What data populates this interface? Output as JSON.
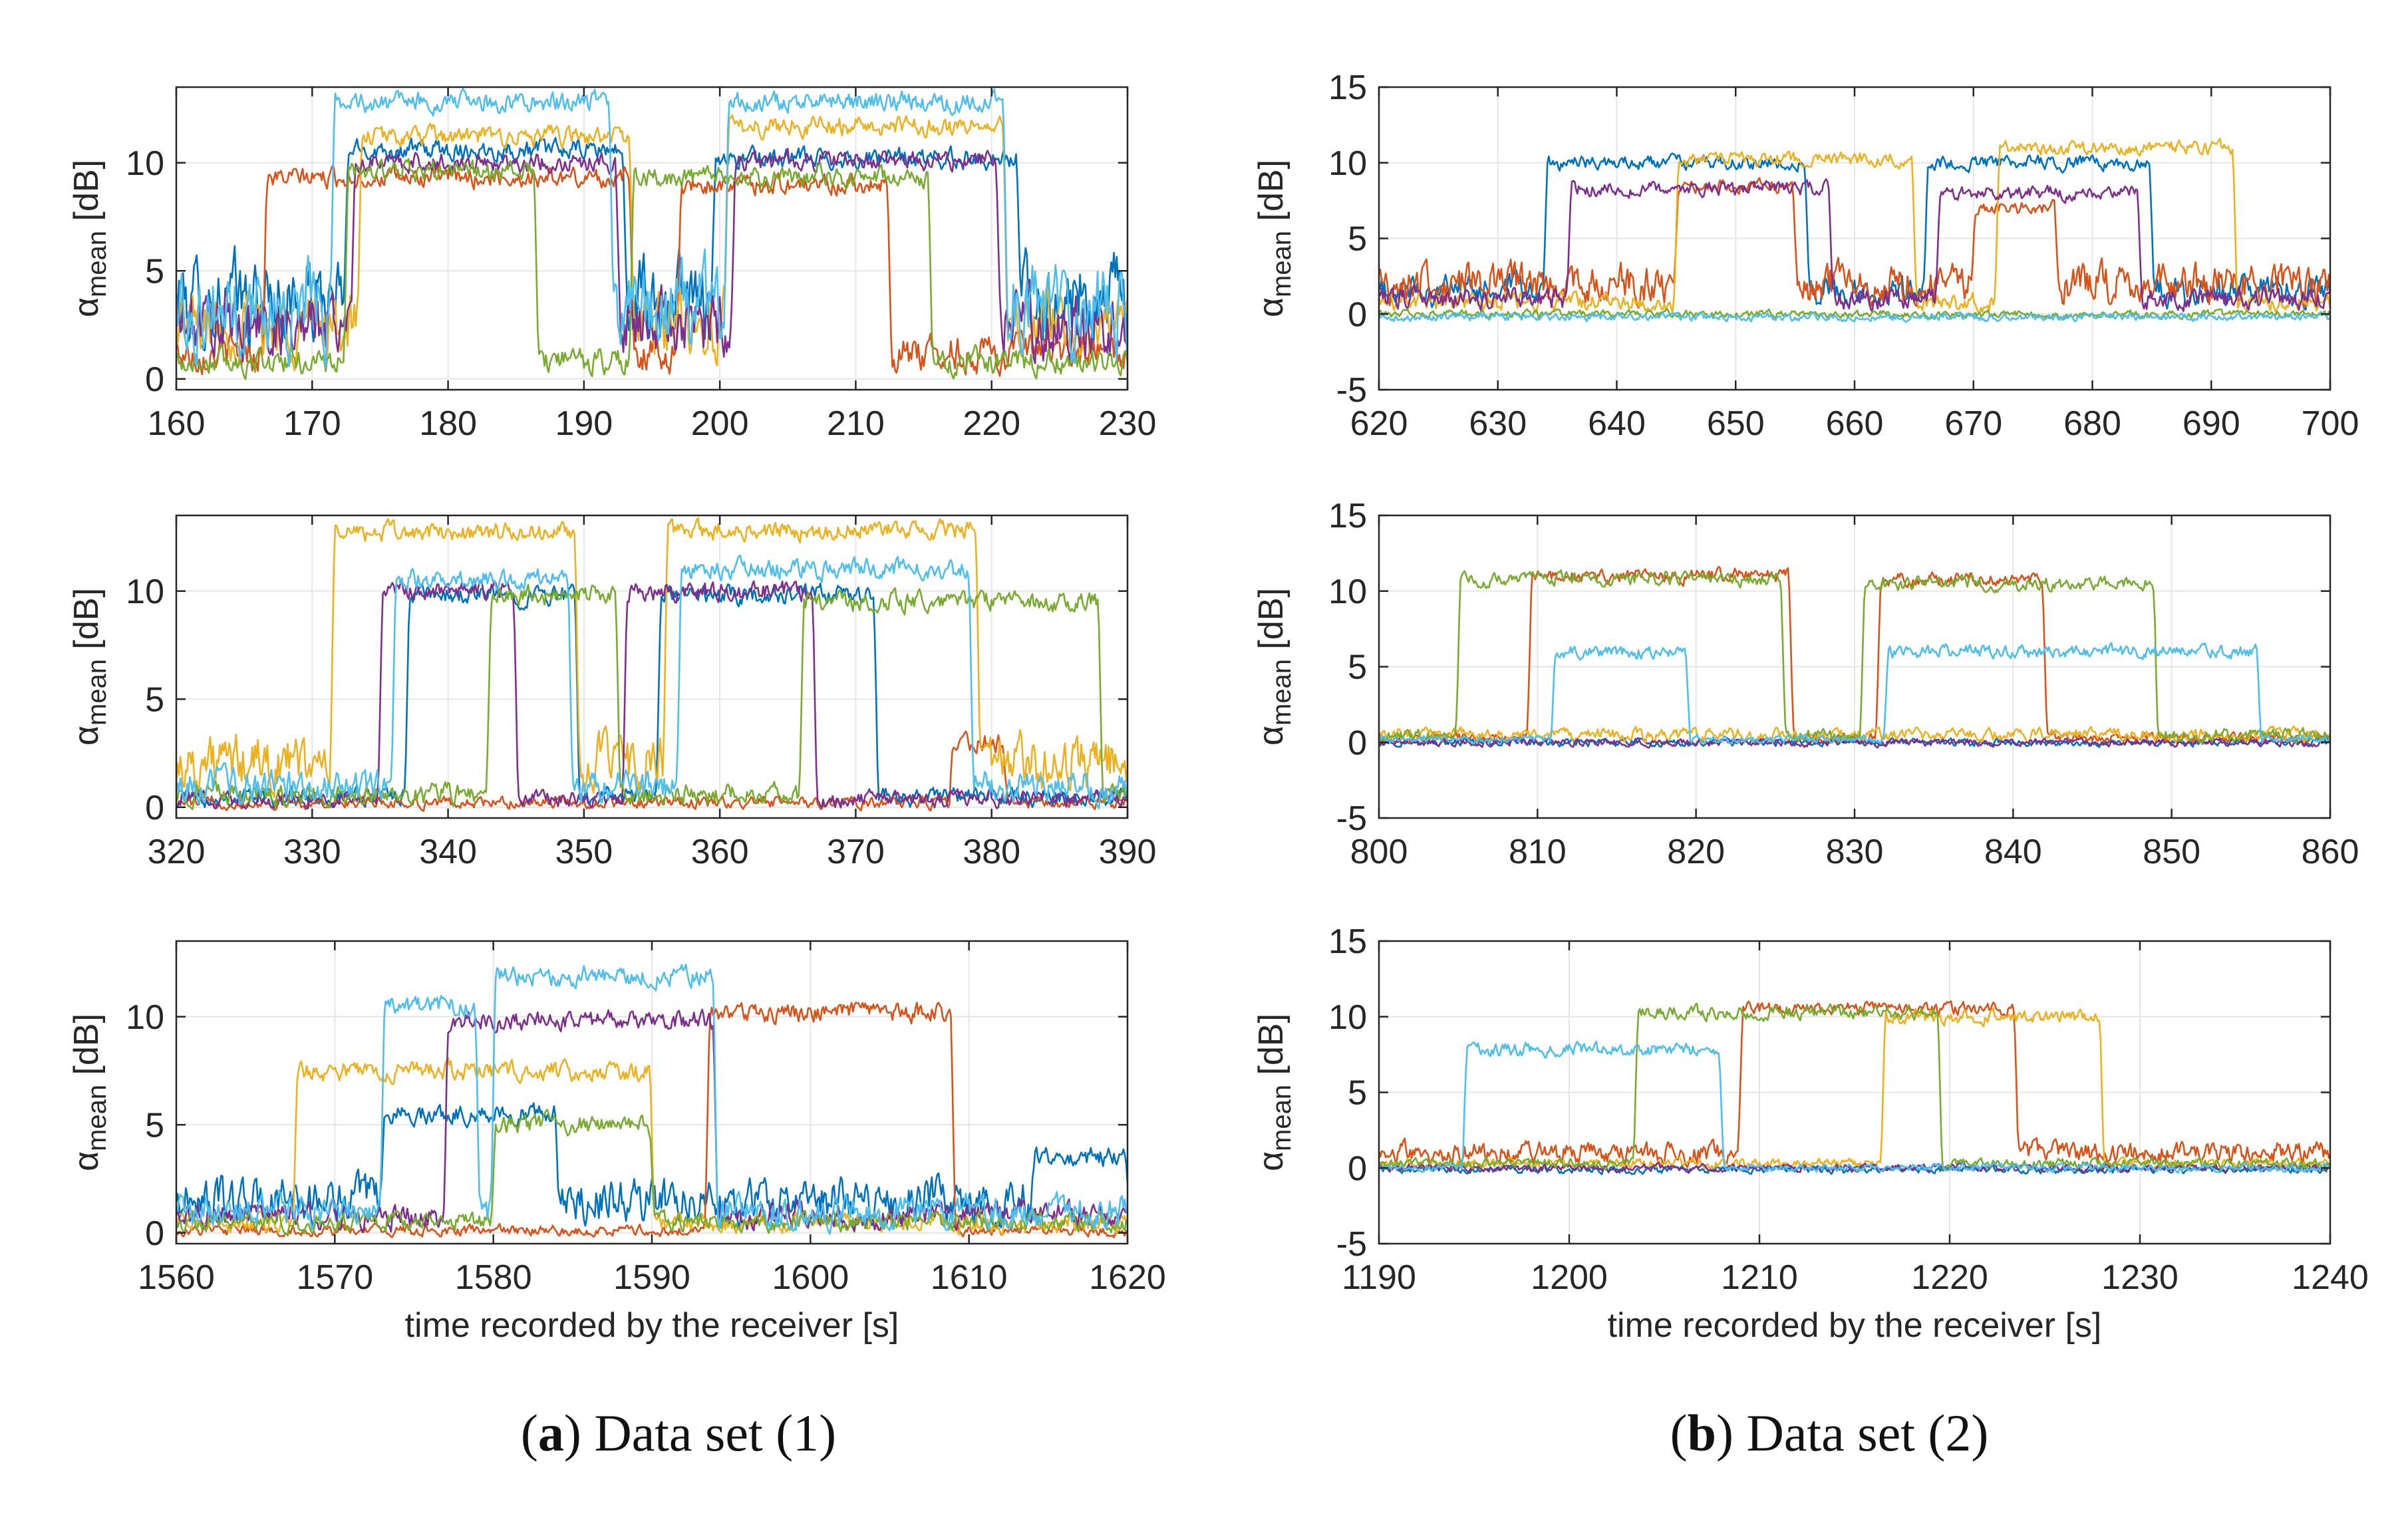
{
  "figure": {
    "caption_a_letter": "a",
    "caption_a_text": "Data set (1)",
    "caption_b_letter": "b",
    "caption_b_text": "Data set (2)",
    "colors": [
      "#0072BD",
      "#D95319",
      "#EDB120",
      "#7E2F8E",
      "#77AC30",
      "#4DBEEE"
    ]
  },
  "chart_data": [
    {
      "id": "a1",
      "type": "line",
      "column": "a",
      "xlim": [
        160,
        230
      ],
      "ylim": [
        -0.5,
        13.5
      ],
      "xticks": [
        160,
        170,
        180,
        190,
        200,
        210,
        220,
        230
      ],
      "yticks": [
        0,
        5,
        10
      ],
      "xlabel": "",
      "ylabel": "α_mean [dB]",
      "ylabel_main": "α",
      "ylabel_sub": "mean",
      "ylabel_unit": "[dB]",
      "grid": true,
      "series": [
        {
          "name": "blue",
          "baseline": 3.5,
          "segments": [
            [
              172.5,
              193,
              10.6
            ],
            [
              199.5,
              222,
              10.2
            ]
          ]
        },
        {
          "name": "orange",
          "baseline": 1.2,
          "segments": [
            [
              166.5,
              193.5,
              9.3
            ],
            [
              197,
              212.5,
              9.0
            ]
          ]
        },
        {
          "name": "yellow",
          "baseline": 2.5,
          "segments": [
            [
              173.5,
              193.5,
              11.2
            ],
            [
              200.5,
              221,
              11.7
            ]
          ]
        },
        {
          "name": "purple",
          "baseline": 2.5,
          "segments": [
            [
              173,
              192.5,
              10.0
            ],
            [
              201,
              220.5,
              10.1
            ]
          ]
        },
        {
          "name": "green",
          "baseline": 0.8,
          "segments": [
            [
              172.5,
              186.5,
              9.6
            ],
            [
              193.5,
              215.5,
              9.3
            ]
          ]
        },
        {
          "name": "cyan",
          "baseline": 3.3,
          "segments": [
            [
              171.5,
              192,
              12.8
            ],
            [
              200.5,
              221,
              12.8
            ]
          ]
        }
      ]
    },
    {
      "id": "a2",
      "type": "line",
      "column": "a",
      "xlim": [
        320,
        390
      ],
      "ylim": [
        -0.5,
        13.5
      ],
      "xticks": [
        320,
        330,
        340,
        350,
        360,
        370,
        380,
        390
      ],
      "yticks": [
        0,
        5,
        10
      ],
      "xlabel": "",
      "ylabel": "α_mean [dB]",
      "ylabel_main": "α",
      "ylabel_sub": "mean",
      "ylabel_unit": "[dB]",
      "grid": true,
      "series": [
        {
          "name": "blue",
          "baseline": 0.5,
          "segments": [
            [
              337,
              349.5,
              9.8
            ],
            [
              355.5,
              371.5,
              9.8
            ]
          ]
        },
        {
          "name": "orange",
          "baseline": 0.2,
          "segments": [
            [
              377,
              381,
              3.0
            ]
          ]
        },
        {
          "name": "yellow",
          "baseline": 2.0,
          "segments": [
            [
              331.5,
              349.5,
              12.7
            ],
            [
              356,
              379,
              12.8
            ]
          ]
        },
        {
          "name": "purple",
          "baseline": 0.4,
          "segments": [
            [
              335,
              345,
              10.0
            ],
            [
              353,
              367,
              10.0
            ]
          ]
        },
        {
          "name": "green",
          "baseline": 0.6,
          "segments": [
            [
              343,
              352.5,
              9.8
            ],
            [
              366,
              388,
              9.5
            ]
          ]
        },
        {
          "name": "cyan",
          "baseline": 1.0,
          "segments": [
            [
              336,
              349,
              10.6
            ],
            [
              357,
              378.5,
              11.0
            ]
          ]
        }
      ]
    },
    {
      "id": "a3",
      "type": "line",
      "column": "a",
      "xlim": [
        1560,
        1620
      ],
      "ylim": [
        -0.5,
        13.5
      ],
      "xticks": [
        1560,
        1570,
        1580,
        1590,
        1600,
        1610,
        1620
      ],
      "yticks": [
        0,
        5,
        10
      ],
      "xlabel": "time recorded by the receiver [s]",
      "ylabel": "α_mean [dB]",
      "ylabel_main": "α",
      "ylabel_sub": "mean",
      "ylabel_unit": "[dB]",
      "grid": true,
      "series": [
        {
          "name": "blue",
          "baseline": 1.5,
          "segments": [
            [
              1573,
              1584,
              5.5
            ],
            [
              1614,
              1620,
              3.5
            ]
          ]
        },
        {
          "name": "orange",
          "baseline": 0.1,
          "segments": [
            [
              1593.5,
              1609,
              10.2
            ]
          ]
        },
        {
          "name": "yellow",
          "baseline": 0.5,
          "segments": [
            [
              1567.5,
              1590,
              7.5
            ]
          ]
        },
        {
          "name": "purple",
          "baseline": 0.8,
          "segments": [
            [
              1577,
              1594,
              9.8
            ]
          ]
        },
        {
          "name": "green",
          "baseline": 0.5,
          "segments": [
            [
              1580,
              1590,
              5.0
            ]
          ]
        },
        {
          "name": "cyan",
          "baseline": 1.0,
          "segments": [
            [
              1573,
              1579,
              10.5
            ],
            [
              1580,
              1594,
              11.9
            ]
          ]
        }
      ]
    },
    {
      "id": "b1",
      "type": "line",
      "column": "b",
      "xlim": [
        620,
        700
      ],
      "ylim": [
        -5,
        15
      ],
      "xticks": [
        620,
        630,
        640,
        650,
        660,
        670,
        680,
        690,
        700
      ],
      "yticks": [
        -5,
        0,
        5,
        10,
        15
      ],
      "xlabel": "",
      "ylabel": "α_mean [dB]",
      "ylabel_main": "α",
      "ylabel_sub": "mean",
      "ylabel_unit": "[dB]",
      "grid": true,
      "series": [
        {
          "name": "blue",
          "baseline": 1.5,
          "segments": [
            [
              634,
              656,
              10.0
            ],
            [
              666,
              685,
              10.0
            ]
          ]
        },
        {
          "name": "orange",
          "baseline": 2.0,
          "segments": [
            [
              645,
              655,
              8.5
            ],
            [
              670,
              677,
              7.0
            ]
          ]
        },
        {
          "name": "yellow",
          "baseline": 0.8,
          "segments": [
            [
              645,
              665,
              10.3
            ],
            [
              672,
              692,
              11.0
            ]
          ]
        },
        {
          "name": "purple",
          "baseline": 1.0,
          "segments": [
            [
              636,
              658,
              8.3
            ],
            [
              667,
              684,
              8.0
            ]
          ]
        },
        {
          "name": "green",
          "baseline": 0.0,
          "segments": []
        },
        {
          "name": "cyan",
          "baseline": -0.2,
          "segments": []
        }
      ]
    },
    {
      "id": "b2",
      "type": "line",
      "column": "b",
      "xlim": [
        800,
        860
      ],
      "ylim": [
        -5,
        15
      ],
      "xticks": [
        800,
        810,
        820,
        830,
        840,
        850,
        860
      ],
      "yticks": [
        -5,
        0,
        5,
        10,
        15
      ],
      "xlabel": "",
      "ylabel": "α_mean [dB]",
      "ylabel_main": "α",
      "ylabel_sub": "mean",
      "ylabel_unit": "[dB]",
      "grid": true,
      "series": [
        {
          "name": "blue",
          "baseline": 0.0,
          "segments": []
        },
        {
          "name": "orange",
          "baseline": 0.3,
          "segments": [
            [
              809.5,
              826,
              11.0
            ],
            [
              831.5,
              842,
              10.8
            ]
          ]
        },
        {
          "name": "yellow",
          "baseline": 0.5,
          "segments": []
        },
        {
          "name": "purple",
          "baseline": 0.0,
          "segments": []
        },
        {
          "name": "green",
          "baseline": 0.5,
          "segments": [
            [
              805,
              825.5,
              10.8
            ],
            [
              830.5,
              849,
              10.5
            ]
          ]
        },
        {
          "name": "cyan",
          "baseline": 0.2,
          "segments": [
            [
              811,
              819.5,
              6.0
            ],
            [
              832,
              855.5,
              6.0
            ]
          ]
        }
      ]
    },
    {
      "id": "b3",
      "type": "line",
      "column": "b",
      "xlim": [
        1190,
        1240
      ],
      "ylim": [
        -5,
        15
      ],
      "xticks": [
        1190,
        1200,
        1210,
        1220,
        1230,
        1240
      ],
      "yticks": [
        -5,
        0,
        5,
        10,
        15
      ],
      "xlabel": "time recorded by the receiver [s]",
      "ylabel": "α_mean [dB]",
      "ylabel_main": "α",
      "ylabel_sub": "mean",
      "ylabel_unit": "[dB]",
      "grid": true,
      "series": [
        {
          "name": "blue",
          "baseline": -0.1,
          "segments": []
        },
        {
          "name": "orange",
          "baseline": 1.0,
          "segments": [
            [
              1209,
              1223.5,
              10.5
            ]
          ]
        },
        {
          "name": "yellow",
          "baseline": 0.3,
          "segments": [
            [
              1216.5,
              1228,
              10.0
            ]
          ]
        },
        {
          "name": "purple",
          "baseline": 0.0,
          "segments": []
        },
        {
          "name": "green",
          "baseline": 0.3,
          "segments": [
            [
              1203.5,
              1219.5,
              10.3
            ]
          ]
        },
        {
          "name": "cyan",
          "baseline": 0.0,
          "segments": [
            [
              1194.5,
              1208,
              7.8
            ]
          ]
        }
      ]
    }
  ]
}
